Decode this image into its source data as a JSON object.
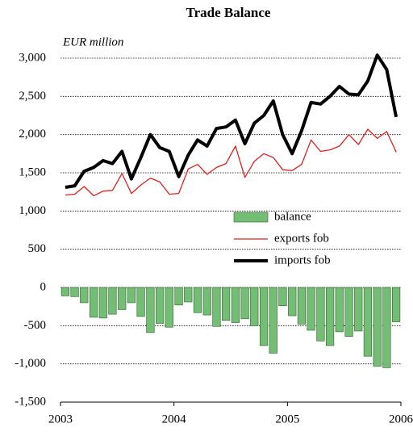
{
  "chart_data": {
    "type": "bar-line",
    "title": "Trade Balance",
    "y_label": "EUR million",
    "x": [
      2003.042,
      2003.125,
      2003.208,
      2003.292,
      2003.375,
      2003.458,
      2003.542,
      2003.625,
      2003.708,
      2003.792,
      2003.875,
      2003.958,
      2004.042,
      2004.125,
      2004.208,
      2004.292,
      2004.375,
      2004.458,
      2004.542,
      2004.625,
      2004.708,
      2004.792,
      2004.875,
      2004.958,
      2005.042,
      2005.125,
      2005.208,
      2005.292,
      2005.375,
      2005.458,
      2005.542,
      2005.625,
      2005.708,
      2005.792,
      2005.875,
      2005.958
    ],
    "series": [
      {
        "name": "balance",
        "color": "#74bd74",
        "kind": "bar",
        "values": [
          -110,
          -120,
          -200,
          -390,
          -400,
          -350,
          -290,
          -200,
          -380,
          -590,
          -470,
          -520,
          -230,
          -190,
          -330,
          -360,
          -510,
          -430,
          -460,
          -410,
          -500,
          -760,
          -860,
          -240,
          -370,
          -480,
          -560,
          -700,
          -760,
          -580,
          -640,
          -570,
          -900,
          -1030,
          -1050,
          -450
        ]
      },
      {
        "name": "exports fob",
        "color": "#e02020",
        "kind": "line",
        "values": [
          1210,
          1220,
          1320,
          1200,
          1260,
          1270,
          1490,
          1230,
          1340,
          1430,
          1380,
          1220,
          1230,
          1550,
          1610,
          1480,
          1570,
          1620,
          1850,
          1440,
          1650,
          1750,
          1700,
          1540,
          1530,
          1610,
          1930,
          1780,
          1800,
          1850,
          2000,
          1870,
          2070,
          1950,
          2040,
          1770
        ]
      },
      {
        "name": "imports fob",
        "color": "#000000",
        "kind": "line",
        "values": [
          1310,
          1330,
          1520,
          1570,
          1660,
          1620,
          1780,
          1420,
          1700,
          2000,
          1830,
          1780,
          1450,
          1730,
          1930,
          1850,
          2080,
          2100,
          2190,
          1880,
          2150,
          2250,
          2440,
          2000,
          1750,
          2050,
          2420,
          2400,
          2500,
          2630,
          2530,
          2520,
          2700,
          3040,
          2850,
          2230
        ]
      }
    ],
    "xlim": [
      2003,
      2006
    ],
    "xticks": [
      2003,
      2004,
      2005,
      2006
    ],
    "ylim": [
      -1500,
      3000
    ],
    "yticks": [
      {
        "value": 3000,
        "label": "3,000"
      },
      {
        "value": 2500,
        "label": "2,500"
      },
      {
        "value": 2000,
        "label": "2,000"
      },
      {
        "value": 1500,
        "label": "1,500"
      },
      {
        "value": 1000,
        "label": "1,000"
      },
      500,
      0,
      -500,
      {
        "value": -1000,
        "label": "-1,000"
      },
      {
        "value": -1500,
        "label": "-1,500"
      }
    ],
    "grid": true,
    "legend": "center-right"
  }
}
